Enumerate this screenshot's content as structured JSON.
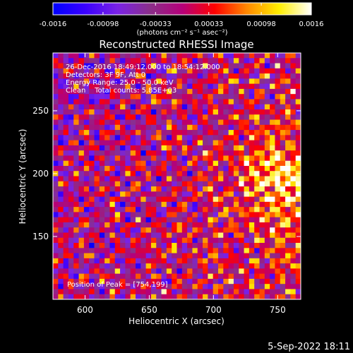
{
  "chart_data": {
    "type": "heatmap",
    "title": "Reconstructed RHESSI Image",
    "xlabel": "Heliocentric X (arcsec)",
    "ylabel": "Heliocentric Y (arcsec)",
    "xlim": [
      575,
      768
    ],
    "ylim": [
      100,
      296
    ],
    "xticks": [
      600,
      650,
      700,
      750
    ],
    "yticks": [
      150,
      200,
      250
    ],
    "colorbar": {
      "range": [
        -0.0016,
        0.0016
      ],
      "ticks": [
        "-0.0016",
        "-0.00098",
        "-0.00033",
        "0.00033",
        "0.00098",
        "0.0016"
      ],
      "tick_values": [
        -0.0016,
        -0.00098,
        -0.00033,
        0.00033,
        0.00098,
        0.0016
      ],
      "unit_label": "(photons cm⁻² s⁻¹ asec⁻²)",
      "stops": [
        "#0000ff",
        "#3a00ff",
        "#7a22e6",
        "#8a2f8a",
        "#b5007a",
        "#ff0000",
        "#ff8800",
        "#ffee00",
        "#ffffff"
      ]
    },
    "annotations": {
      "time": "26-Dec-2016 18:49:12.000 to 18:54:12.000",
      "detectors": "Detectors: 3F 9F, Att 0",
      "energy": "Energy Range: 25.0 - 50.0 keV",
      "clean": "Clean    Total counts: 5.85E+03",
      "peak": "Position of Peak = [754,199]"
    },
    "peak": [
      754,
      199
    ]
  },
  "footer": {
    "date": "5-Sep-2022 18:11"
  }
}
